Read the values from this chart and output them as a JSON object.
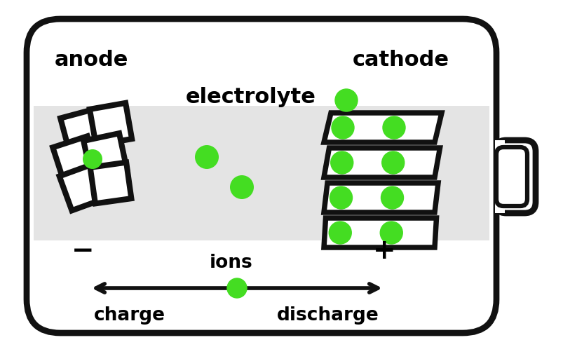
{
  "bg_color": "#ffffff",
  "battery_body_color": "#ffffff",
  "battery_outline_color": "#111111",
  "electrolyte_bg_color": "#e4e4e4",
  "green_color": "#44dd22",
  "line_width": 4.5,
  "labels": {
    "anode": "anode",
    "cathode": "cathode",
    "electrolyte": "electrolyte",
    "ions": "ions",
    "charge": "charge",
    "discharge": "discharge",
    "minus": "−",
    "plus": "+"
  },
  "font_size_title": 22,
  "font_size_label": 19,
  "font_size_sign": 24
}
